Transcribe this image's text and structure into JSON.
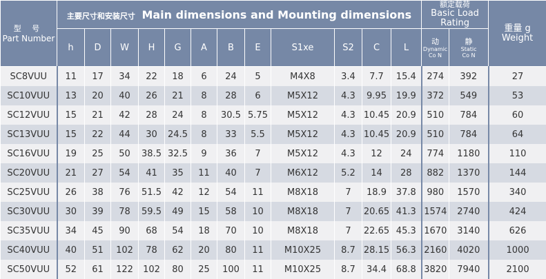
{
  "header": {
    "part_cn": "型 号",
    "part_en": "Part Number",
    "main_cn": "主要尺寸和安装尺寸",
    "main_en": "Main dimensions and Mounting dimensions",
    "load_cn": "额定载荷",
    "load_en1": "Basic Load",
    "load_en2": "Rating",
    "weight_cn": "重量 g",
    "weight_en": "Weight",
    "dim_cols": [
      "h",
      "D",
      "W",
      "H",
      "G",
      "A",
      "B",
      "E",
      "S1xe",
      "S2",
      "C",
      "L"
    ],
    "dynamic_cn": "动",
    "dynamic_en": "Dynamic",
    "dynamic_unit": "Co  N",
    "static_cn": "静",
    "static_en": "Static",
    "static_unit": "Co  N"
  },
  "rows": [
    [
      "SC8VUU",
      "11",
      "17",
      "34",
      "22",
      "18",
      "6",
      "24",
      "5",
      "M4X8",
      "3.4",
      "7.7",
      "15.4",
      "274",
      "392",
      "27"
    ],
    [
      "SC10VUU",
      "13",
      "20",
      "40",
      "26",
      "21",
      "8",
      "28",
      "6",
      "M5X12",
      "4.3",
      "9.95",
      "19.9",
      "372",
      "549",
      "53"
    ],
    [
      "SC12VUU",
      "15",
      "21",
      "42",
      "28",
      "24",
      "8",
      "30.5",
      "5.75",
      "M5X12",
      "4.3",
      "10.45",
      "20.9",
      "510",
      "784",
      "60"
    ],
    [
      "SC13VUU",
      "15",
      "22",
      "44",
      "30",
      "24.5",
      "8",
      "33",
      "5.5",
      "M5X12",
      "4.3",
      "10.45",
      "20.9",
      "510",
      "784",
      "64"
    ],
    [
      "SC16VUU",
      "19",
      "25",
      "50",
      "38.5",
      "32.5",
      "9",
      "36",
      "7",
      "M5X12",
      "4.3",
      "12",
      "24",
      "774",
      "1180",
      "110"
    ],
    [
      "SC20VUU",
      "21",
      "27",
      "54",
      "41",
      "35",
      "11",
      "40",
      "7",
      "M6X12",
      "5.2",
      "14",
      "28",
      "882",
      "1370",
      "144"
    ],
    [
      "SC25VUU",
      "26",
      "38",
      "76",
      "51.5",
      "42",
      "12",
      "54",
      "11",
      "M8X18",
      "7",
      "18.9",
      "37.8",
      "980",
      "1570",
      "340"
    ],
    [
      "SC30VUU",
      "30",
      "39",
      "78",
      "59.5",
      "49",
      "15",
      "58",
      "10",
      "M8X18",
      "7",
      "20.65",
      "41.3",
      "1574",
      "2740",
      "424"
    ],
    [
      "SC35VUU",
      "34",
      "45",
      "90",
      "68",
      "54",
      "18",
      "70",
      "10",
      "M8X18",
      "7",
      "22.65",
      "45.3",
      "1670",
      "3140",
      "626"
    ],
    [
      "SC40VUU",
      "40",
      "51",
      "102",
      "78",
      "62",
      "20",
      "80",
      "11",
      "M10X25",
      "8.7",
      "28.15",
      "56.3",
      "2160",
      "4020",
      "1000"
    ],
    [
      "SC50VUU",
      "52",
      "61",
      "122",
      "102",
      "80",
      "25",
      "100",
      "11",
      "M10X25",
      "8.7",
      "34.4",
      "68.8",
      "3820",
      "7940",
      "2100"
    ]
  ]
}
